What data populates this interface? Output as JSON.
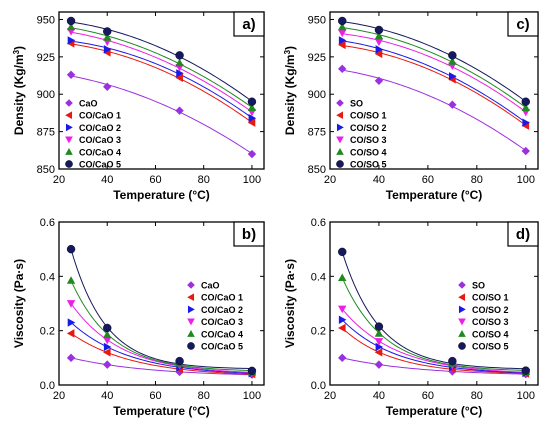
{
  "chart_data": [
    {
      "type": "scatter",
      "panel_label": "a)",
      "xlabel": "Temperature (°C)",
      "ylabel": "Density (Kg/m³)",
      "ylabel_main": "Density (Kg/m",
      "ylabel_sup": "3",
      "ylabel_close": ")",
      "xlim": [
        20,
        105
      ],
      "ylim": [
        850,
        955
      ],
      "xticks": [
        "20",
        "40",
        "60",
        "80",
        "100"
      ],
      "yticks": [
        "850",
        "875",
        "900",
        "925",
        "950"
      ],
      "legend_position": "bottom-left",
      "x": [
        25,
        40,
        70,
        100
      ],
      "series": [
        {
          "name": "CaO",
          "values": [
            913,
            905,
            889,
            860
          ]
        },
        {
          "name": "CO/CaO 1",
          "values": [
            934,
            928,
            911,
            881
          ]
        },
        {
          "name": "CO/CaO 2",
          "values": [
            936,
            930,
            914,
            884
          ]
        },
        {
          "name": "CO/CaO 3",
          "values": [
            942,
            935,
            918,
            888
          ]
        },
        {
          "name": "CO/CaO 4",
          "values": [
            945,
            938,
            921,
            891
          ]
        },
        {
          "name": "CO/CaO 5",
          "values": [
            949,
            942,
            926,
            895
          ]
        }
      ]
    },
    {
      "type": "scatter",
      "panel_label": "c)",
      "xlabel": "Temperature (°C)",
      "ylabel": "Density (Kg/m³)",
      "ylabel_main": "Density (Kg/m",
      "ylabel_sup": "3",
      "ylabel_close": ")",
      "xlim": [
        20,
        105
      ],
      "ylim": [
        850,
        955
      ],
      "xticks": [
        "20",
        "40",
        "60",
        "80",
        "100"
      ],
      "yticks": [
        "850",
        "875",
        "900",
        "925",
        "950"
      ],
      "legend_position": "bottom-left",
      "x": [
        25,
        40,
        70,
        100
      ],
      "series": [
        {
          "name": "SO",
          "values": [
            917,
            909,
            893,
            862
          ]
        },
        {
          "name": "CO/SO 1",
          "values": [
            933,
            927,
            910,
            879
          ]
        },
        {
          "name": "CO/SO 2",
          "values": [
            936,
            930,
            912,
            881
          ]
        },
        {
          "name": "CO/SO 3",
          "values": [
            941,
            935,
            919,
            888
          ]
        },
        {
          "name": "CO/SO 4",
          "values": [
            945,
            939,
            922,
            891
          ]
        },
        {
          "name": "CO/SO 5",
          "values": [
            949,
            943,
            926,
            895
          ]
        }
      ]
    },
    {
      "type": "scatter",
      "panel_label": "b)",
      "xlabel": "Temperature (°C)",
      "ylabel": "Viscosity (Pa·s)",
      "ylabel_main": "Viscosity (Pa·s)",
      "ylabel_sup": "",
      "ylabel_close": "",
      "xlim": [
        20,
        105
      ],
      "ylim": [
        0.0,
        0.6
      ],
      "xticks": [
        "20",
        "40",
        "60",
        "80",
        "100"
      ],
      "yticks": [
        "0.0",
        "0.2",
        "0.4",
        "0.6"
      ],
      "legend_position": "right",
      "x": [
        25,
        40,
        70,
        100
      ],
      "series": [
        {
          "name": "CaO",
          "values": [
            0.1,
            0.075,
            0.048,
            0.038
          ]
        },
        {
          "name": "CO/CaO 1",
          "values": [
            0.19,
            0.12,
            0.058,
            0.04
          ]
        },
        {
          "name": "CO/CaO 2",
          "values": [
            0.23,
            0.14,
            0.065,
            0.043
          ]
        },
        {
          "name": "CO/CaO 3",
          "values": [
            0.3,
            0.165,
            0.072,
            0.045
          ]
        },
        {
          "name": "CO/CaO 4",
          "values": [
            0.385,
            0.185,
            0.08,
            0.048
          ]
        },
        {
          "name": "CO/CaO 5",
          "values": [
            0.5,
            0.21,
            0.088,
            0.052
          ]
        }
      ]
    },
    {
      "type": "scatter",
      "panel_label": "d)",
      "xlabel": "Temperature (°C)",
      "ylabel": "Viscosity (Pa·s)",
      "ylabel_main": "Viscosity (Pa·s)",
      "ylabel_sup": "",
      "ylabel_close": "",
      "xlim": [
        20,
        105
      ],
      "ylim": [
        0.0,
        0.6
      ],
      "xticks": [
        "20",
        "40",
        "60",
        "80",
        "100"
      ],
      "yticks": [
        "0.0",
        "0.2",
        "0.4",
        "0.6"
      ],
      "legend_position": "right",
      "x": [
        25,
        40,
        70,
        100
      ],
      "series": [
        {
          "name": "SO",
          "values": [
            0.1,
            0.075,
            0.05,
            0.04
          ]
        },
        {
          "name": "CO/SO 1",
          "values": [
            0.21,
            0.12,
            0.06,
            0.042
          ]
        },
        {
          "name": "CO/SO 2",
          "values": [
            0.24,
            0.14,
            0.066,
            0.044
          ]
        },
        {
          "name": "CO/SO 3",
          "values": [
            0.28,
            0.16,
            0.072,
            0.046
          ]
        },
        {
          "name": "CO/SO 4",
          "values": [
            0.395,
            0.19,
            0.08,
            0.049
          ]
        },
        {
          "name": "CO/SO 5",
          "values": [
            0.49,
            0.215,
            0.088,
            0.053
          ]
        }
      ]
    }
  ],
  "series_styles": [
    {
      "marker": "diamond",
      "color": "#9b30e0"
    },
    {
      "marker": "triangle-left",
      "color": "#e8190f"
    },
    {
      "marker": "triangle-right",
      "color": "#1a1ae6"
    },
    {
      "marker": "triangle-down",
      "color": "#ee1ee8"
    },
    {
      "marker": "triangle-up",
      "color": "#1f8a1f"
    },
    {
      "marker": "circle",
      "color": "#15195f"
    }
  ]
}
